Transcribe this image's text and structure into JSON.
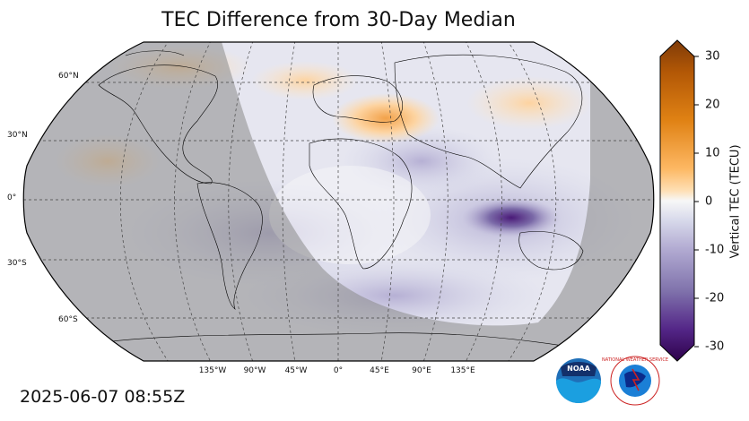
{
  "title": "TEC Difference from 30-Day Median",
  "timestamp": "2025-06-07 08:55Z",
  "map": {
    "projection": "Robinson",
    "lat_labels": [
      "60°N",
      "30°N",
      "0°",
      "30°S",
      "60°S"
    ],
    "lon_labels": [
      "135°W",
      "90°W",
      "45°W",
      "0°",
      "45°E",
      "90°E",
      "135°E"
    ],
    "graticule": "dashed",
    "night_shading": "grey overlay on western hemisphere and polar south",
    "highlights": [
      {
        "region": "Southwest Pacific east of Australia",
        "value": -28
      },
      {
        "region": "Eastern Mediterranean / Middle East",
        "value": 12
      },
      {
        "region": "North Atlantic",
        "value": 6
      },
      {
        "region": "North Pacific",
        "value": 8
      }
    ]
  },
  "colorbar": {
    "label": "Vertical TEC (TECU)",
    "ticks": [
      "30",
      "20",
      "10",
      "0",
      "-10",
      "-20",
      "-30"
    ],
    "range": [
      -30,
      30
    ],
    "colormap": "PuOr_r",
    "colors": {
      "max": "#7f3b08",
      "mid": "#f7f7f7",
      "min": "#2d004b"
    }
  },
  "logos": {
    "noaa": "NOAA",
    "nws": "NATIONAL WEATHER SERVICE"
  }
}
